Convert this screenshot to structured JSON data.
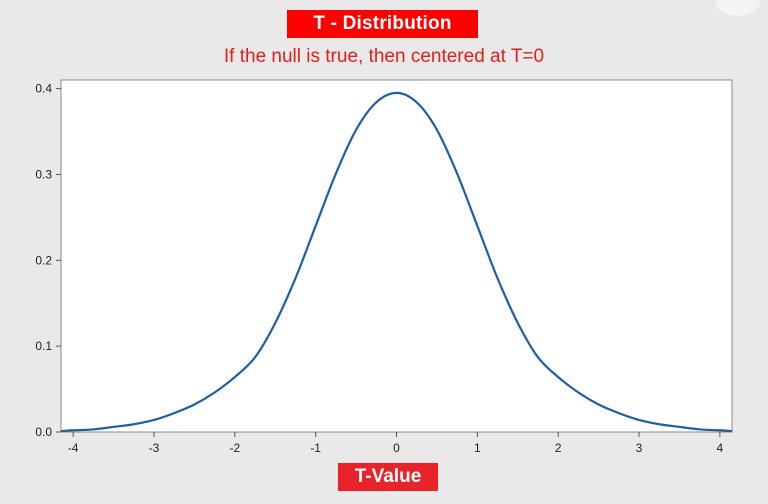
{
  "chart_data": {
    "type": "line",
    "title": "T - Distribution",
    "subtitle": "If the null is true, then centered at T=0",
    "xlabel": "T-Value",
    "ylabel": "",
    "xlim": [
      -4.15,
      4.15
    ],
    "ylim": [
      0,
      0.41
    ],
    "x_ticks": [
      "-4",
      "-3",
      "-2",
      "-1",
      "0",
      "1",
      "2",
      "3",
      "4"
    ],
    "y_ticks": [
      "0.0",
      "0.1",
      "0.2",
      "0.3",
      "0.4"
    ],
    "grid": false,
    "series": [
      {
        "color": "#1f5fa6",
        "x": [
          -4.15,
          -4.0,
          -3.75,
          -3.5,
          -3.25,
          -3.0,
          -2.75,
          -2.5,
          -2.25,
          -2.0,
          -1.75,
          -1.5,
          -1.25,
          -1.0,
          -0.75,
          -0.5,
          -0.25,
          0.0,
          0.25,
          0.5,
          0.75,
          1.0,
          1.25,
          1.5,
          1.75,
          2.0,
          2.25,
          2.5,
          2.75,
          3.0,
          3.25,
          3.5,
          3.75,
          4.0,
          4.15
        ],
        "y": [
          0.001,
          0.002,
          0.003,
          0.006,
          0.009,
          0.014,
          0.022,
          0.032,
          0.046,
          0.064,
          0.087,
          0.127,
          0.179,
          0.24,
          0.301,
          0.352,
          0.384,
          0.395,
          0.384,
          0.352,
          0.301,
          0.24,
          0.179,
          0.127,
          0.087,
          0.064,
          0.046,
          0.032,
          0.022,
          0.014,
          0.009,
          0.006,
          0.003,
          0.002,
          0.001
        ]
      }
    ]
  }
}
